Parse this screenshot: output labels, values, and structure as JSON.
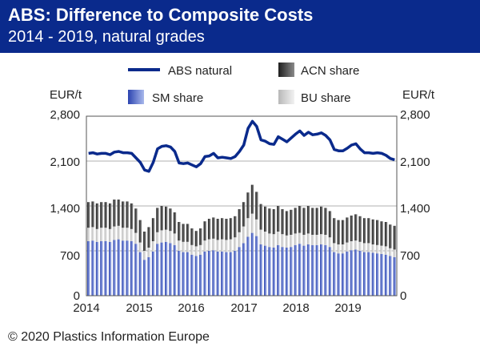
{
  "header": {
    "title": "ABS: Difference to Composite Costs",
    "subtitle": "2014 - 2019, natural grades"
  },
  "footer": {
    "copyright": "© 2020 Plastics Information Europe"
  },
  "colors": {
    "header_bg": "#0a2a8c",
    "abs_line": "#0a2a8c",
    "sm_share": "#4a64c8",
    "acn_share": "#3a3a3a",
    "bu_share": "#d4d4d4",
    "grid": "#b0b0b0"
  },
  "chart_data": {
    "type": "bar",
    "x": [
      "2014-01",
      "2014-02",
      "2014-03",
      "2014-04",
      "2014-05",
      "2014-06",
      "2014-07",
      "2014-08",
      "2014-09",
      "2014-10",
      "2014-11",
      "2014-12",
      "2015-01",
      "2015-02",
      "2015-03",
      "2015-04",
      "2015-05",
      "2015-06",
      "2015-07",
      "2015-08",
      "2015-09",
      "2015-10",
      "2015-11",
      "2015-12",
      "2016-01",
      "2016-02",
      "2016-03",
      "2016-04",
      "2016-05",
      "2016-06",
      "2016-07",
      "2016-08",
      "2016-09",
      "2016-10",
      "2016-11",
      "2016-12",
      "2017-01",
      "2017-02",
      "2017-03",
      "2017-04",
      "2017-05",
      "2017-06",
      "2017-07",
      "2017-08",
      "2017-09",
      "2017-10",
      "2017-11",
      "2017-12",
      "2018-01",
      "2018-02",
      "2018-03",
      "2018-04",
      "2018-05",
      "2018-06",
      "2018-07",
      "2018-08",
      "2018-09",
      "2018-10",
      "2018-11",
      "2018-12",
      "2019-01",
      "2019-02",
      "2019-03",
      "2019-04",
      "2019-05",
      "2019-06",
      "2019-07",
      "2019-08",
      "2019-09",
      "2019-10",
      "2019-11",
      "2019-12"
    ],
    "series": [
      {
        "name": "ABS natural",
        "kind": "line",
        "values": [
          2220,
          2230,
          2210,
          2220,
          2220,
          2200,
          2240,
          2250,
          2230,
          2230,
          2220,
          2150,
          2080,
          1960,
          1940,
          2080,
          2290,
          2330,
          2340,
          2320,
          2250,
          2070,
          2060,
          2070,
          2040,
          2010,
          2060,
          2170,
          2180,
          2220,
          2150,
          2160,
          2150,
          2140,
          2170,
          2250,
          2350,
          2610,
          2720,
          2640,
          2430,
          2410,
          2370,
          2360,
          2480,
          2440,
          2400,
          2460,
          2520,
          2570,
          2500,
          2550,
          2510,
          2520,
          2540,
          2500,
          2430,
          2280,
          2260,
          2260,
          2300,
          2350,
          2370,
          2290,
          2230,
          2230,
          2220,
          2230,
          2220,
          2190,
          2140,
          2120
        ]
      },
      {
        "name": "SM share",
        "kind": "bar",
        "values": [
          850,
          860,
          840,
          850,
          850,
          840,
          870,
          880,
          860,
          860,
          850,
          810,
          680,
          560,
          600,
          690,
          810,
          830,
          840,
          820,
          790,
          700,
          680,
          680,
          640,
          620,
          640,
          690,
          700,
          710,
          690,
          690,
          680,
          680,
          700,
          760,
          820,
          920,
          980,
          930,
          800,
          780,
          760,
          750,
          790,
          760,
          750,
          760,
          790,
          810,
          780,
          800,
          790,
          790,
          800,
          790,
          760,
          680,
          660,
          660,
          690,
          710,
          720,
          700,
          680,
          680,
          670,
          660,
          650,
          640,
          620,
          600
        ]
      },
      {
        "name": "BU share",
        "kind": "bar",
        "values": [
          210,
          210,
          200,
          210,
          210,
          200,
          210,
          210,
          200,
          200,
          190,
          170,
          150,
          140,
          150,
          160,
          180,
          190,
          190,
          190,
          180,
          160,
          160,
          160,
          150,
          150,
          150,
          170,
          180,
          180,
          180,
          190,
          190,
          200,
          210,
          230,
          260,
          290,
          300,
          260,
          230,
          220,
          210,
          210,
          210,
          200,
          190,
          190,
          180,
          170,
          170,
          170,
          160,
          160,
          160,
          160,
          150,
          140,
          140,
          140,
          140,
          140,
          140,
          140,
          140,
          140,
          130,
          130,
          130,
          130,
          120,
          120
        ]
      },
      {
        "name": "ACN share",
        "kind": "bar",
        "values": [
          400,
          400,
          400,
          400,
          400,
          400,
          420,
          410,
          410,
          410,
          400,
          380,
          350,
          300,
          320,
          360,
          380,
          380,
          360,
          350,
          330,
          290,
          280,
          280,
          260,
          240,
          260,
          300,
          320,
          330,
          330,
          330,
          330,
          330,
          330,
          360,
          380,
          400,
          450,
          430,
          400,
          390,
          390,
          390,
          400,
          390,
          380,
          390,
          400,
          420,
          420,
          430,
          420,
          420,
          430,
          420,
          410,
          390,
          380,
          380,
          390,
          400,
          410,
          400,
          390,
          390,
          390,
          390,
          380,
          380,
          370,
          370
        ]
      }
    ],
    "xlabel": "",
    "ylabel_left": "EUR/t",
    "ylabel_right": "EUR/t",
    "ylim": [
      0,
      2800
    ],
    "yticks": [
      "0",
      "700",
      "1,400",
      "2,100",
      "2,800"
    ],
    "xtick_labels": [
      "2014",
      "2015",
      "2016",
      "2017",
      "2018",
      "2019"
    ],
    "legend_labels": [
      "ABS natural",
      "ACN share",
      "SM share",
      "BU share"
    ],
    "legend_position": "top",
    "grid": true
  }
}
